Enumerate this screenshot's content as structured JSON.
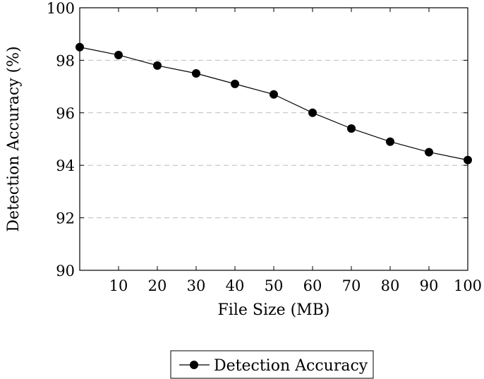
{
  "chart_data": {
    "type": "line",
    "title": "",
    "xlabel": "File Size (MB)",
    "ylabel": "Detection Accuracy (%)",
    "xlim": [
      0,
      100
    ],
    "ylim": [
      90,
      100
    ],
    "x_ticks": [
      10,
      20,
      30,
      40,
      50,
      60,
      70,
      80,
      90,
      100
    ],
    "y_ticks": [
      90,
      92,
      94,
      96,
      98,
      100
    ],
    "grid": "horizontal dashed",
    "legend_position": "bottom-center",
    "series": [
      {
        "name": "Detection Accuracy",
        "color": "#000000",
        "marker": "circle",
        "x": [
          0,
          10,
          20,
          30,
          40,
          50,
          60,
          70,
          80,
          90,
          100
        ],
        "y": [
          98.5,
          98.2,
          97.8,
          97.5,
          97.1,
          96.7,
          96.0,
          95.4,
          94.9,
          94.5,
          94.2
        ]
      }
    ]
  }
}
